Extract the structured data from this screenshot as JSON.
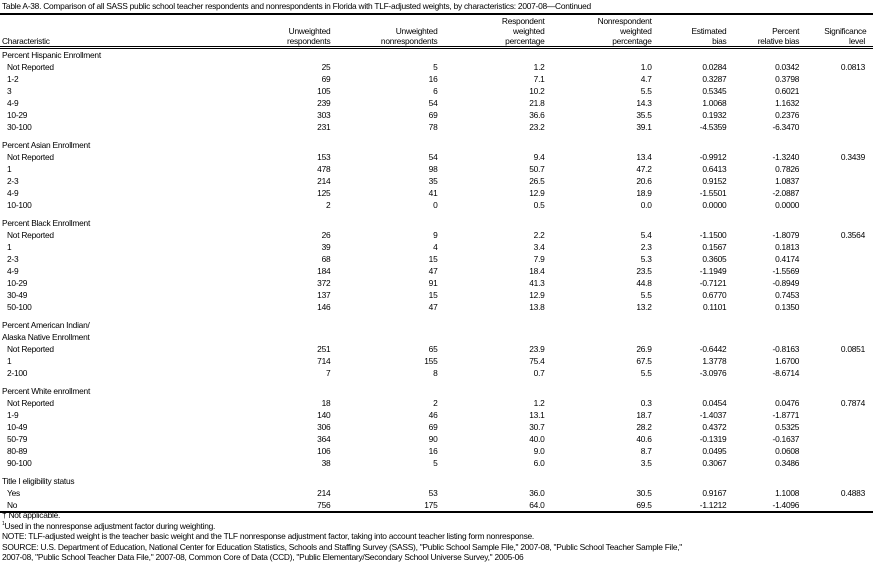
{
  "title": "Table A-38. Comparison of all SASS public school teacher respondents and nonrespondents in Florida with TLF-adjusted weights, by characteristics: 2007-08—Continued",
  "columns": [
    "Characteristic",
    "Unweighted respondents",
    "Unweighted nonrespondents",
    "Respondent weighted percentage",
    "Nonrespondent weighted percentage",
    "Estimated bias",
    "Percent relative bias",
    "Significance level"
  ],
  "sections": [
    {
      "label": "Percent Hispanic Enrollment",
      "rows": [
        [
          "Not Reported",
          "25",
          "5",
          "1.2",
          "1.0",
          "0.0284",
          "0.0342",
          "0.0813"
        ],
        [
          "1-2",
          "69",
          "16",
          "7.1",
          "4.7",
          "0.3287",
          "0.3798",
          ""
        ],
        [
          "3",
          "105",
          "6",
          "10.2",
          "5.5",
          "0.5345",
          "0.6021",
          ""
        ],
        [
          "4-9",
          "239",
          "54",
          "21.8",
          "14.3",
          "1.0068",
          "1.1632",
          ""
        ],
        [
          "10-29",
          "303",
          "69",
          "36.6",
          "35.5",
          "0.1932",
          "0.2376",
          ""
        ],
        [
          "30-100",
          "231",
          "78",
          "23.2",
          "39.1",
          "-4.5359",
          "-6.3470",
          ""
        ]
      ]
    },
    {
      "label": "Percent Asian Enrollment",
      "rows": [
        [
          "Not Reported",
          "153",
          "54",
          "9.4",
          "13.4",
          "-0.9912",
          "-1.3240",
          "0.3439"
        ],
        [
          "1",
          "478",
          "98",
          "50.7",
          "47.2",
          "0.6413",
          "0.7826",
          ""
        ],
        [
          "2-3",
          "214",
          "35",
          "26.5",
          "20.6",
          "0.9152",
          "1.0837",
          ""
        ],
        [
          "4-9",
          "125",
          "41",
          "12.9",
          "18.9",
          "-1.5501",
          "-2.0887",
          ""
        ],
        [
          "10-100",
          "2",
          "0",
          "0.5",
          "0.0",
          "0.0000",
          "0.0000",
          ""
        ]
      ]
    },
    {
      "label": "Percent Black Enrollment",
      "rows": [
        [
          "Not Reported",
          "26",
          "9",
          "2.2",
          "5.4",
          "-1.1500",
          "-1.8079",
          "0.3564"
        ],
        [
          "1",
          "39",
          "4",
          "3.4",
          "2.3",
          "0.1567",
          "0.1813",
          ""
        ],
        [
          "2-3",
          "68",
          "15",
          "7.9",
          "5.3",
          "0.3605",
          "0.4174",
          ""
        ],
        [
          "4-9",
          "184",
          "47",
          "18.4",
          "23.5",
          "-1.1949",
          "-1.5569",
          ""
        ],
        [
          "10-29",
          "372",
          "91",
          "41.3",
          "44.8",
          "-0.7121",
          "-0.8949",
          ""
        ],
        [
          "30-49",
          "137",
          "15",
          "12.9",
          "5.5",
          "0.6770",
          "0.7453",
          ""
        ],
        [
          "50-100",
          "146",
          "47",
          "13.8",
          "13.2",
          "0.1101",
          "0.1350",
          ""
        ]
      ]
    },
    {
      "label": "Percent American Indian/",
      "label2": "Alaska Native Enrollment",
      "rows": [
        [
          "Not Reported",
          "251",
          "65",
          "23.9",
          "26.9",
          "-0.6442",
          "-0.8163",
          "0.0851"
        ],
        [
          "1",
          "714",
          "155",
          "75.4",
          "67.5",
          "1.3778",
          "1.6700",
          ""
        ],
        [
          "2-100",
          "7",
          "8",
          "0.7",
          "5.5",
          "-3.0976",
          "-8.6714",
          ""
        ]
      ]
    },
    {
      "label": "Percent White enrollment",
      "rows": [
        [
          "Not Reported",
          "18",
          "2",
          "1.2",
          "0.3",
          "0.0454",
          "0.0476",
          "0.7874"
        ],
        [
          "1-9",
          "140",
          "46",
          "13.1",
          "18.7",
          "-1.4037",
          "-1.8771",
          ""
        ],
        [
          "10-49",
          "306",
          "69",
          "30.7",
          "28.2",
          "0.4372",
          "0.5325",
          ""
        ],
        [
          "50-79",
          "364",
          "90",
          "40.0",
          "40.6",
          "-0.1319",
          "-0.1637",
          ""
        ],
        [
          "80-89",
          "106",
          "16",
          "9.0",
          "8.7",
          "0.0495",
          "0.0608",
          ""
        ],
        [
          "90-100",
          "38",
          "5",
          "6.0",
          "3.5",
          "0.3067",
          "0.3486",
          ""
        ]
      ]
    },
    {
      "label": "Title I eligibility status",
      "rows": [
        [
          "Yes",
          "214",
          "53",
          "36.0",
          "30.5",
          "0.9167",
          "1.1008",
          "0.4883"
        ],
        [
          "No",
          "756",
          "175",
          "64.0",
          "69.5",
          "-1.1212",
          "-1.4096",
          ""
        ]
      ]
    }
  ],
  "notes": {
    "na": "† Not applicable.",
    "footnote_marker": "1",
    "footnote": "Used in the nonresponse adjustment factor during weighting.",
    "note": "NOTE: TLF-adjusted weight is the teacher basic weight and the TLF nonresponse adjustment factor, taking into account teacher listing form nonresponse.",
    "source1": "SOURCE: U.S. Department of Education, National Center for Education Statistics, Schools and Staffing Survey (SASS), \"Public School Sample File,\" 2007-08, \"Public School Teacher Sample File,\"",
    "source2": "2007-08, \"Public School Teacher Data File,\" 2007-08, Common Core of Data (CCD), \"Public Elementary/Secondary School Universe Survey,\" 2005-06"
  }
}
